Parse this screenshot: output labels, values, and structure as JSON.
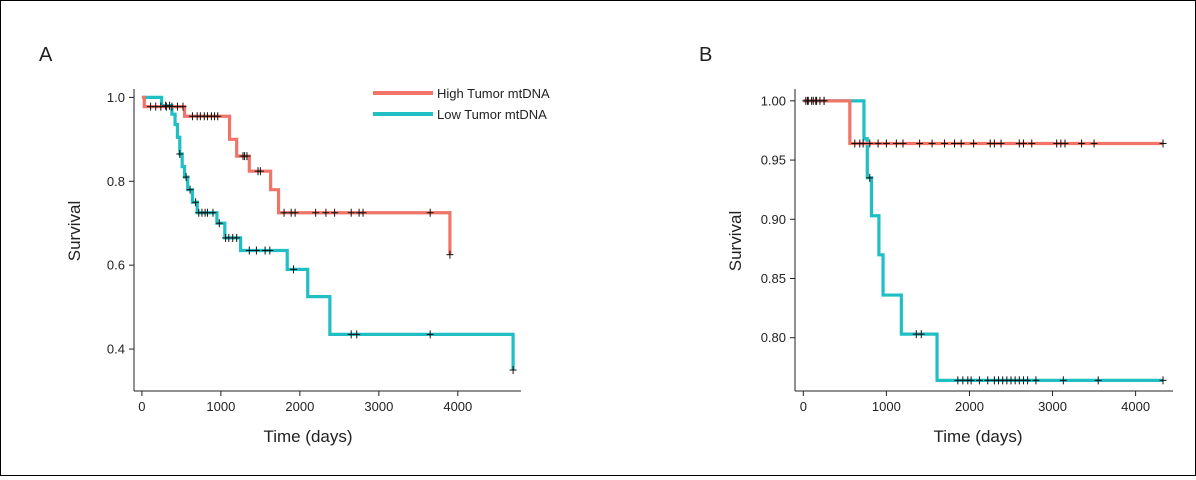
{
  "figure": {
    "panel_a_letter": "A",
    "panel_b_letter": "B",
    "legend": {
      "high_label": "High Tumor mtDNA",
      "low_label": "Low Tumor mtDNA"
    }
  },
  "colors": {
    "high": "#F07468",
    "low": "#1FBFC4",
    "censor": "#111111"
  },
  "chart_data": [
    {
      "panel": "A",
      "type": "line",
      "title": "",
      "xlabel": "Time (days)",
      "ylabel": "Survival",
      "xlim": [
        -100,
        4800
      ],
      "ylim": [
        0.3,
        1.02
      ],
      "xticks": [
        0,
        1000,
        2000,
        3000,
        4000
      ],
      "yticks": [
        0.4,
        0.6,
        0.8,
        1.0
      ],
      "ytick_labels": [
        "0.4",
        "0.6",
        "0.8",
        "1.0"
      ],
      "legend_position": "top-center",
      "series": [
        {
          "name": "High Tumor mtDNA",
          "color": "#F07468",
          "step_x": [
            0,
            30,
            540,
            1110,
            1200,
            1360,
            1630,
            1730,
            3900
          ],
          "step_y": [
            1.0,
            0.978,
            0.955,
            0.9,
            0.86,
            0.824,
            0.78,
            0.725,
            0.625
          ],
          "censor_x": [
            110,
            175,
            240,
            310,
            380,
            450,
            520,
            640,
            700,
            740,
            790,
            830,
            880,
            920,
            960,
            1280,
            1300,
            1330,
            1470,
            1500,
            1800,
            1890,
            1940,
            2200,
            2330,
            2440,
            2650,
            2750,
            2800,
            3650,
            3900
          ]
        },
        {
          "name": "Low Tumor mtDNA",
          "color": "#1FBFC4",
          "step_x": [
            0,
            80,
            250,
            380,
            420,
            450,
            480,
            510,
            540,
            580,
            640,
            700,
            950,
            1050,
            1250,
            1840,
            2100,
            2380,
            4700
          ],
          "step_y": [
            1.0,
            1.0,
            0.98,
            0.96,
            0.935,
            0.905,
            0.865,
            0.835,
            0.81,
            0.78,
            0.75,
            0.725,
            0.7,
            0.665,
            0.635,
            0.59,
            0.525,
            0.435,
            0.35
          ],
          "censor_x": [
            300,
            350,
            480,
            560,
            610,
            680,
            720,
            760,
            800,
            830,
            900,
            980,
            1060,
            1100,
            1150,
            1200,
            1360,
            1450,
            1560,
            1620,
            1920,
            2650,
            2720,
            3650,
            4700
          ]
        }
      ]
    },
    {
      "panel": "B",
      "type": "line",
      "title": "",
      "xlabel": "Time (days)",
      "ylabel": "Survival",
      "xlim": [
        -100,
        4450
      ],
      "ylim": [
        0.755,
        1.01
      ],
      "xticks": [
        0,
        1000,
        2000,
        3000,
        4000
      ],
      "yticks": [
        0.8,
        0.85,
        0.9,
        0.95,
        1.0
      ],
      "ytick_labels": [
        "0.80",
        "0.85",
        "0.90",
        "0.95",
        "1.00"
      ],
      "series": [
        {
          "name": "High Tumor mtDNA",
          "color": "#F07468",
          "step_x": [
            0,
            560,
            4330
          ],
          "step_y": [
            1.0,
            0.964,
            0.964
          ],
          "censor_x": [
            30,
            60,
            100,
            150,
            250,
            620,
            680,
            720,
            800,
            900,
            1000,
            1120,
            1200,
            1400,
            1550,
            1700,
            1820,
            1900,
            2050,
            2250,
            2300,
            2380,
            2600,
            2650,
            2750,
            3050,
            3100,
            3150,
            3350,
            3500,
            4330
          ]
        },
        {
          "name": "Low Tumor mtDNA",
          "color": "#1FBFC4",
          "step_x": [
            0,
            330,
            730,
            770,
            820,
            910,
            960,
            1180,
            1610,
            4330
          ],
          "step_y": [
            1.0,
            1.0,
            0.968,
            0.935,
            0.903,
            0.87,
            0.836,
            0.803,
            0.764,
            0.764
          ],
          "censor_x": [
            50,
            120,
            160,
            200,
            250,
            800,
            1360,
            1420,
            1860,
            1920,
            1980,
            2020,
            2120,
            2220,
            2300,
            2350,
            2400,
            2450,
            2500,
            2550,
            2600,
            2650,
            2700,
            2800,
            3130,
            3550,
            4330
          ]
        }
      ]
    }
  ]
}
